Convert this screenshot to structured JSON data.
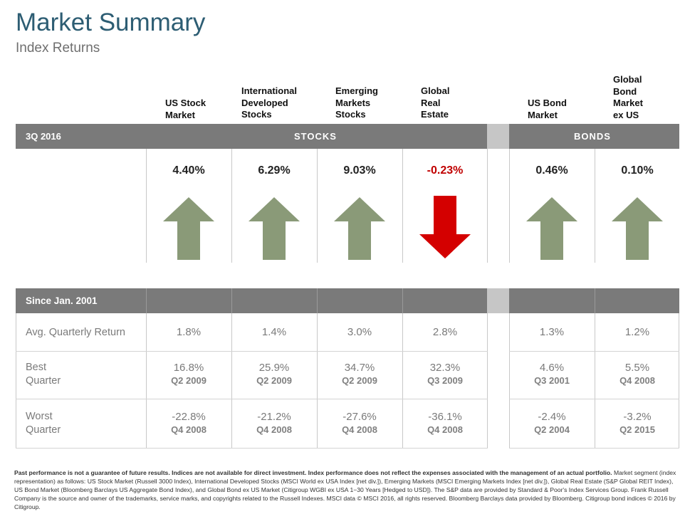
{
  "title": "Market Summary",
  "subtitle": "Index Returns",
  "columns": [
    {
      "label": "US Stock\nMarket"
    },
    {
      "label": "International\nDeveloped\nStocks"
    },
    {
      "label": "Emerging\nMarkets\nStocks"
    },
    {
      "label": "Global\nReal\nEstate"
    },
    {
      "label": "US Bond\nMarket"
    },
    {
      "label": "Global\nBond\nMarket\nex US"
    }
  ],
  "quarter_band": {
    "period": "3Q 2016",
    "stocks_label": "STOCKS",
    "bonds_label": "BONDS"
  },
  "returns": [
    {
      "value": "4.40%",
      "direction": "up"
    },
    {
      "value": "6.29%",
      "direction": "up"
    },
    {
      "value": "9.03%",
      "direction": "up"
    },
    {
      "value": "-0.23%",
      "direction": "down"
    },
    {
      "value": "0.46%",
      "direction": "up"
    },
    {
      "value": "0.10%",
      "direction": "up"
    }
  ],
  "colors": {
    "up_arrow": "#8a9a78",
    "down_arrow": "#d40000",
    "negative_text": "#c00000",
    "title": "#2d5d73",
    "band": "#7a7a7a"
  },
  "since_band": {
    "label": "Since Jan. 2001"
  },
  "stats": {
    "avg_label": "Avg. Quarterly Return",
    "best_label": "Best\nQuarter",
    "worst_label": "Worst\nQuarter",
    "avg": [
      "1.8%",
      "1.4%",
      "3.0%",
      "2.8%",
      "1.3%",
      "1.2%"
    ],
    "best": [
      {
        "value": "16.8%",
        "quarter": "Q2 2009"
      },
      {
        "value": "25.9%",
        "quarter": "Q2 2009"
      },
      {
        "value": "34.7%",
        "quarter": "Q2 2009"
      },
      {
        "value": "32.3%",
        "quarter": "Q3 2009"
      },
      {
        "value": "4.6%",
        "quarter": "Q3 2001"
      },
      {
        "value": "5.5%",
        "quarter": "Q4 2008"
      }
    ],
    "worst": [
      {
        "value": "-22.8%",
        "quarter": "Q4 2008"
      },
      {
        "value": "-21.2%",
        "quarter": "Q4 2008"
      },
      {
        "value": "-27.6%",
        "quarter": "Q4 2008"
      },
      {
        "value": "-36.1%",
        "quarter": "Q4 2008"
      },
      {
        "value": "-2.4%",
        "quarter": "Q2 2004"
      },
      {
        "value": "-3.2%",
        "quarter": "Q2 2015"
      }
    ]
  },
  "footnote": {
    "bold": "Past performance is not a guarantee of future results. Indices are not available for direct investment. Index performance does not reflect the expenses associated with the management of an actual portfolio.",
    "text": "Market segment (index representation) as follows: US Stock Market (Russell 3000 Index), International Developed Stocks (MSCI World ex USA Index [net div.]), Emerging Markets (MSCI Emerging Markets Index [net div.]), Global Real Estate (S&P Global REIT Index), US Bond Market (Bloomberg Barclays US Aggregate Bond Index), and Global Bond ex US Market (Citigroup WGBI ex USA 1−30 Years [Hedged to USD]). The S&P data are provided by Standard & Poor's Index Services Group. Frank Russell Company is the source and owner of the trademarks, service marks, and copyrights related to the Russell Indexes. MSCI data © MSCI 2016, all rights reserved. Bloomberg Barclays data provided by Bloomberg. Citigroup bond indices © 2016 by Citigroup."
  }
}
